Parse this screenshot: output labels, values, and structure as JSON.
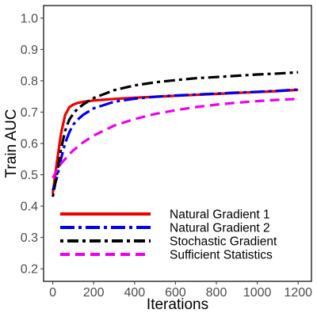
{
  "chart_data": {
    "type": "line",
    "xlabel": "Iterations",
    "ylabel": "Train AUC",
    "xlim": [
      -45,
      1265
    ],
    "ylim": [
      0.16,
      1.04
    ],
    "xticks": [
      0,
      200,
      400,
      600,
      800,
      1000,
      1200
    ],
    "yticks": [
      0.2,
      0.3,
      0.4,
      0.5,
      0.6,
      0.7,
      0.8,
      0.9,
      1.0
    ],
    "ytick_labels": [
      "0.2",
      "0.3",
      "0.4",
      "0.5",
      "0.6",
      "0.7",
      "0.8",
      "0.9",
      "1.0"
    ],
    "grid": false,
    "legend_position": "bottom-left",
    "series": [
      {
        "name": "Natural Gradient 1",
        "color": "#ee0000",
        "dash": "solid",
        "x": [
          0,
          20,
          40,
          60,
          80,
          100,
          120,
          150,
          200,
          300,
          400,
          500,
          600,
          700,
          800,
          900,
          1000,
          1100,
          1200
        ],
        "y": [
          0.44,
          0.54,
          0.63,
          0.69,
          0.715,
          0.724,
          0.729,
          0.733,
          0.737,
          0.742,
          0.746,
          0.749,
          0.752,
          0.755,
          0.758,
          0.761,
          0.764,
          0.767,
          0.771
        ]
      },
      {
        "name": "Natural Gradient 2",
        "color": "#0000ee",
        "dash": "longdash-dot",
        "x": [
          0,
          20,
          40,
          60,
          80,
          100,
          120,
          150,
          200,
          300,
          400,
          500,
          600,
          700,
          800,
          900,
          1000,
          1100,
          1200
        ],
        "y": [
          0.45,
          0.49,
          0.55,
          0.6,
          0.635,
          0.66,
          0.675,
          0.692,
          0.712,
          0.733,
          0.743,
          0.749,
          0.753,
          0.756,
          0.759,
          0.762,
          0.765,
          0.768,
          0.772
        ]
      },
      {
        "name": "Stochastic Gradient",
        "color": "#000000",
        "dash": "dashdot-long",
        "x": [
          0,
          20,
          40,
          60,
          80,
          100,
          120,
          150,
          200,
          300,
          400,
          500,
          600,
          700,
          800,
          900,
          1000,
          1100,
          1200
        ],
        "y": [
          0.43,
          0.5,
          0.58,
          0.64,
          0.675,
          0.695,
          0.71,
          0.725,
          0.745,
          0.77,
          0.785,
          0.795,
          0.802,
          0.808,
          0.812,
          0.816,
          0.82,
          0.823,
          0.827
        ]
      },
      {
        "name": "Sufficient Statistics",
        "color": "#ee00ee",
        "dash": "dashed",
        "x": [
          0,
          20,
          40,
          60,
          80,
          100,
          150,
          200,
          300,
          400,
          500,
          600,
          700,
          800,
          900,
          1000,
          1100,
          1200
        ],
        "y": [
          0.49,
          0.515,
          0.535,
          0.55,
          0.565,
          0.578,
          0.604,
          0.625,
          0.657,
          0.678,
          0.694,
          0.706,
          0.716,
          0.724,
          0.73,
          0.735,
          0.739,
          0.742
        ]
      }
    ]
  }
}
